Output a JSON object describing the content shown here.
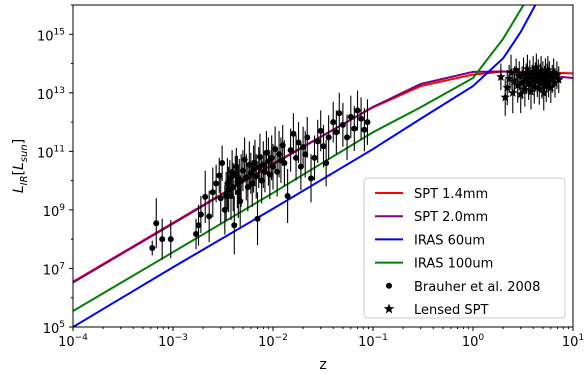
{
  "chart_data": {
    "type": "line",
    "xlabel": "z",
    "ylabel": {
      "base": "L",
      "sub": "IR",
      "bracket_open": "[",
      "unit_base": "L",
      "unit_sub": "sun",
      "bracket_close": "]"
    },
    "x_scale": "log",
    "y_scale": "log",
    "xlim": [
      0.0001,
      10
    ],
    "ylim": [
      100000,
      10000000000000000
    ],
    "x_ticks": [
      {
        "value": 0.0001,
        "base": "10",
        "exp": "−4"
      },
      {
        "value": 0.001,
        "base": "10",
        "exp": "−3"
      },
      {
        "value": 0.01,
        "base": "10",
        "exp": "−2"
      },
      {
        "value": 0.1,
        "base": "10",
        "exp": "−1"
      },
      {
        "value": 1,
        "base": "10",
        "exp": "0"
      },
      {
        "value": 10,
        "base": "10",
        "exp": "1"
      }
    ],
    "y_ticks": [
      {
        "value": 100000,
        "base": "10",
        "exp": "5"
      },
      {
        "value": 10000000,
        "base": "10",
        "exp": "7"
      },
      {
        "value": 1000000000,
        "base": "10",
        "exp": "9"
      },
      {
        "value": 100000000000,
        "base": "10",
        "exp": "11"
      },
      {
        "value": 10000000000000,
        "base": "10",
        "exp": "13"
      },
      {
        "value": 1000000000000000,
        "base": "10",
        "exp": "15"
      }
    ],
    "grid": false,
    "legend_position": "lower-right",
    "series": [
      {
        "name": "SPT 1.4mm",
        "kind": "line",
        "color": "#ff0000",
        "x": [
          0.0001,
          0.001,
          0.01,
          0.1,
          0.3,
          1,
          2,
          4,
          7,
          10
        ],
        "y": [
          3500000.0,
          360000000.0,
          38000000000.0,
          3200000000000.0,
          17000000000000.0,
          42000000000000.0,
          53000000000000.0,
          52000000000000.0,
          48000000000000.0,
          46000000000000.0
        ]
      },
      {
        "name": "SPT 2.0mm",
        "kind": "line",
        "color": "#800080",
        "x": [
          0.0001,
          0.001,
          0.01,
          0.1,
          0.3,
          1,
          2,
          4,
          7,
          10
        ],
        "y": [
          3300000.0,
          340000000.0,
          36000000000.0,
          3300000000000.0,
          20000000000000.0,
          52000000000000.0,
          54000000000000.0,
          44000000000000.0,
          36000000000000.0,
          32000000000000.0
        ]
      },
      {
        "name": "IRAS 60um",
        "kind": "line",
        "color": "#0000ff",
        "x": [
          0.0001,
          0.001,
          0.01,
          0.1,
          0.3,
          1,
          2,
          3,
          4.2
        ],
        "y": [
          100000.0,
          11000000.0,
          1100000000.0,
          120000000000.0,
          1300000000000.0,
          17000000000000.0,
          150000000000000.0,
          1200000000000000.0,
          1e+16
        ]
      },
      {
        "name": "IRAS 100um",
        "kind": "line",
        "color": "#008000",
        "x": [
          0.0001,
          0.001,
          0.01,
          0.1,
          0.3,
          1,
          2,
          3.2
        ],
        "y": [
          350000.0,
          36000000.0,
          3800000000.0,
          450000000000.0,
          3200000000000.0,
          32000000000000.0,
          700000000000000.0,
          1e+16
        ]
      },
      {
        "name": "Brauher et al. 2008",
        "kind": "errorbar-scatter",
        "marker": "circle",
        "color": "#000000",
        "points": [
          [
            0.00062,
            50000000.0,
            90000000.0
          ],
          [
            0.00068,
            350000000.0,
            2500000000.0
          ],
          [
            0.00078,
            100000000.0,
            500000000.0
          ],
          [
            0.00095,
            100000000.0,
            450000000.0
          ],
          [
            0.0017,
            150000000.0,
            500000000.0
          ],
          [
            0.0018,
            300000000.0,
            1500000000.0
          ],
          [
            0.0019,
            700000000.0,
            3000000000.0
          ],
          [
            0.0021,
            2800000000.0,
            22000000000.0
          ],
          [
            0.0023,
            600000000.0,
            4500000000.0
          ],
          [
            0.0025,
            4000000000.0,
            28000000000.0
          ],
          [
            0.0027,
            8000000000.0,
            35000000000.0
          ],
          [
            0.0029,
            15000000000.0,
            60000000000.0
          ],
          [
            0.003,
            2500000000.0,
            18000000000.0
          ],
          [
            0.0031,
            40000000000.0,
            160000000000.0
          ],
          [
            0.0033,
            1000000000.0,
            7000000000.0
          ],
          [
            0.0034,
            3000000000.0,
            20000000000.0
          ],
          [
            0.0035,
            8000000000.0,
            60000000000.0
          ],
          [
            0.0036,
            5000000000.0,
            30000000000.0
          ],
          [
            0.0037,
            12000000000.0,
            50000000000.0
          ],
          [
            0.0038,
            3000000000.0,
            20000000000.0
          ],
          [
            0.0039,
            20000000000.0,
            110000000000.0
          ],
          [
            0.004,
            6000000000.0,
            40000000000.0
          ],
          [
            0.0041,
            300000000.0,
            3000000000.0
          ],
          [
            0.0042,
            15000000000.0,
            70000000000.0
          ],
          [
            0.0043,
            30000000000.0,
            130000000000.0
          ],
          [
            0.0044,
            9000000000.0,
            70000000000.0
          ],
          [
            0.0045,
            4000000000.0,
            30000000000.0
          ],
          [
            0.0046,
            11000000000.0,
            55000000000.0
          ],
          [
            0.0047,
            2000000000.0,
            15000000000.0
          ],
          [
            0.0048,
            10000000000.0,
            80000000000.0
          ],
          [
            0.005,
            22000000000.0,
            110000000000.0
          ],
          [
            0.0052,
            52000000000.0,
            300000000000.0
          ],
          [
            0.0054,
            13000000000.0,
            80000000000.0
          ],
          [
            0.0056,
            6000000000.0,
            40000000000.0
          ],
          [
            0.0058,
            35000000000.0,
            220000000000.0
          ],
          [
            0.006,
            18000000000.0,
            90000000000.0
          ],
          [
            0.0062,
            8000000000.0,
            50000000000.0
          ],
          [
            0.0064,
            25000000000.0,
            160000000000.0
          ],
          [
            0.0066,
            40000000000.0,
            250000000000.0
          ],
          [
            0.0068,
            14000000000.0,
            80000000000.0
          ],
          [
            0.007,
            500000000.0,
            4000000000.0
          ],
          [
            0.0072,
            28000000000.0,
            140000000000.0
          ],
          [
            0.0074,
            65000000000.0,
            400000000000.0
          ],
          [
            0.0077,
            10000000000.0,
            60000000000.0
          ],
          [
            0.008,
            35000000000.0,
            220000000000.0
          ],
          [
            0.0083,
            20000000000.0,
            100000000000.0
          ],
          [
            0.0086,
            90000000000.0,
            500000000000.0
          ],
          [
            0.009,
            45000000000.0,
            300000000000.0
          ],
          [
            0.0093,
            16000000000.0,
            110000000000.0
          ],
          [
            0.0097,
            60000000000.0,
            350000000000.0
          ],
          [
            0.01,
            30000000000.0,
            180000000000.0
          ],
          [
            0.0105,
            120000000000.0,
            700000000000.0
          ],
          [
            0.011,
            20000000000.0,
            140000000000.0
          ],
          [
            0.0115,
            80000000000.0,
            500000000000.0
          ],
          [
            0.012,
            50000000000.0,
            300000000000.0
          ],
          [
            0.0125,
            160000000000.0,
            800000000000.0
          ],
          [
            0.013,
            40000000000.0,
            240000000000.0
          ],
          [
            0.014,
            3000000000.0,
            25000000000.0
          ],
          [
            0.015,
            110000000000.0,
            600000000000.0
          ],
          [
            0.016,
            400000000000.0,
            2000000000000.0
          ],
          [
            0.017,
            60000000000.0,
            360000000000.0
          ],
          [
            0.018,
            200000000000.0,
            1000000000000.0
          ],
          [
            0.019,
            30000000000.0,
            190000000000.0
          ],
          [
            0.02,
            140000000000.0,
            700000000000.0
          ],
          [
            0.021,
            80000000000.0,
            500000000000.0
          ],
          [
            0.022,
            300000000000.0,
            1500000000000.0
          ],
          [
            0.024,
            12000000000.0,
            80000000000.0
          ],
          [
            0.026,
            60000000000.0,
            350000000000.0
          ],
          [
            0.028,
            220000000000.0,
            1200000000000.0
          ],
          [
            0.03,
            500000000000.0,
            2500000000000.0
          ],
          [
            0.032,
            150000000000.0,
            800000000000.0
          ],
          [
            0.034,
            40000000000.0,
            250000000000.0
          ],
          [
            0.036,
            300000000000.0,
            1700000000000.0
          ],
          [
            0.04,
            1000000000000.0,
            5000000000000.0
          ],
          [
            0.043,
            450000000000.0,
            2500000000000.0
          ],
          [
            0.046,
            2000000000000.0,
            10000000000000.0
          ],
          [
            0.05,
            800000000000.0,
            4500000000000.0
          ],
          [
            0.055,
            300000000000.0,
            1800000000000.0
          ],
          [
            0.06,
            1500000000000.0,
            8000000000000.0
          ],
          [
            0.065,
            600000000000.0,
            3500000000000.0
          ],
          [
            0.07,
            2500000000000.0,
            12000000000000.0
          ],
          [
            0.076,
            1300000000000.0,
            7000000000000.0
          ],
          [
            0.082,
            550000000000.0,
            3000000000000.0
          ],
          [
            0.088,
            1000000000000.0,
            6000000000000.0
          ]
        ]
      },
      {
        "name": "Lensed SPT",
        "kind": "errorbar-scatter",
        "marker": "star",
        "color": "#000000",
        "points": [
          [
            1.9,
            35000000000000.0,
            100000000000000.0
          ],
          [
            2.1,
            7000000000000.0,
            30000000000000.0
          ],
          [
            2.2,
            15000000000000.0,
            60000000000000.0
          ],
          [
            2.3,
            30000000000000.0,
            90000000000000.0
          ],
          [
            2.4,
            50000000000000.0,
            200000000000000.0
          ],
          [
            2.5,
            10000000000000.0,
            50000000000000.0
          ],
          [
            2.6,
            25000000000000.0,
            80000000000000.0
          ],
          [
            2.7,
            60000000000000.0,
            150000000000000.0
          ],
          [
            2.8,
            18000000000000.0,
            70000000000000.0
          ],
          [
            2.9,
            38000000000000.0,
            120000000000000.0
          ],
          [
            3.0,
            9000000000000.0,
            40000000000000.0
          ],
          [
            3.1,
            22000000000000.0,
            80000000000000.0
          ],
          [
            3.2,
            45000000000000.0,
            160000000000000.0
          ],
          [
            3.3,
            13000000000000.0,
            50000000000000.0
          ],
          [
            3.4,
            30000000000000.0,
            100000000000000.0
          ],
          [
            3.5,
            65000000000000.0,
            200000000000000.0
          ],
          [
            3.6,
            20000000000000.0,
            70000000000000.0
          ],
          [
            3.7,
            40000000000000.0,
            130000000000000.0
          ],
          [
            3.8,
            11000000000000.0,
            45000000000000.0
          ],
          [
            3.9,
            28000000000000.0,
            90000000000000.0
          ],
          [
            4.0,
            55000000000000.0,
            180000000000000.0
          ],
          [
            4.1,
            16000000000000.0,
            60000000000000.0
          ],
          [
            4.2,
            35000000000000.0,
            110000000000000.0
          ],
          [
            4.3,
            75000000000000.0,
            220000000000000.0
          ],
          [
            4.4,
            24000000000000.0,
            80000000000000.0
          ],
          [
            4.5,
            42000000000000.0,
            140000000000000.0
          ],
          [
            4.6,
            14000000000000.0,
            50000000000000.0
          ],
          [
            4.7,
            32000000000000.0,
            100000000000000.0
          ],
          [
            4.8,
            58000000000000.0,
            180000000000000.0
          ],
          [
            4.9,
            21000000000000.0,
            70000000000000.0
          ],
          [
            5.0,
            39000000000000.0,
            120000000000000.0
          ],
          [
            5.1,
            10000000000000.0,
            40000000000000.0
          ],
          [
            5.2,
            26000000000000.0,
            85000000000000.0
          ],
          [
            5.3,
            48000000000000.0,
            150000000000000.0
          ],
          [
            5.4,
            17000000000000.0,
            60000000000000.0
          ],
          [
            5.5,
            33000000000000.0,
            100000000000000.0
          ],
          [
            5.6,
            60000000000000.0,
            180000000000000.0
          ],
          [
            5.7,
            23000000000000.0,
            75000000000000.0
          ],
          [
            5.8,
            41000000000000.0,
            120000000000000.0
          ],
          [
            6.0,
            15000000000000.0,
            50000000000000.0
          ],
          [
            6.2,
            30000000000000.0,
            90000000000000.0
          ],
          [
            6.4,
            50000000000000.0,
            150000000000000.0
          ],
          [
            6.6,
            22000000000000.0,
            70000000000000.0
          ],
          [
            6.9,
            40000000000000.0,
            120000000000000.0
          ],
          [
            7.2,
            28000000000000.0,
            80000000000000.0
          ]
        ]
      }
    ]
  }
}
